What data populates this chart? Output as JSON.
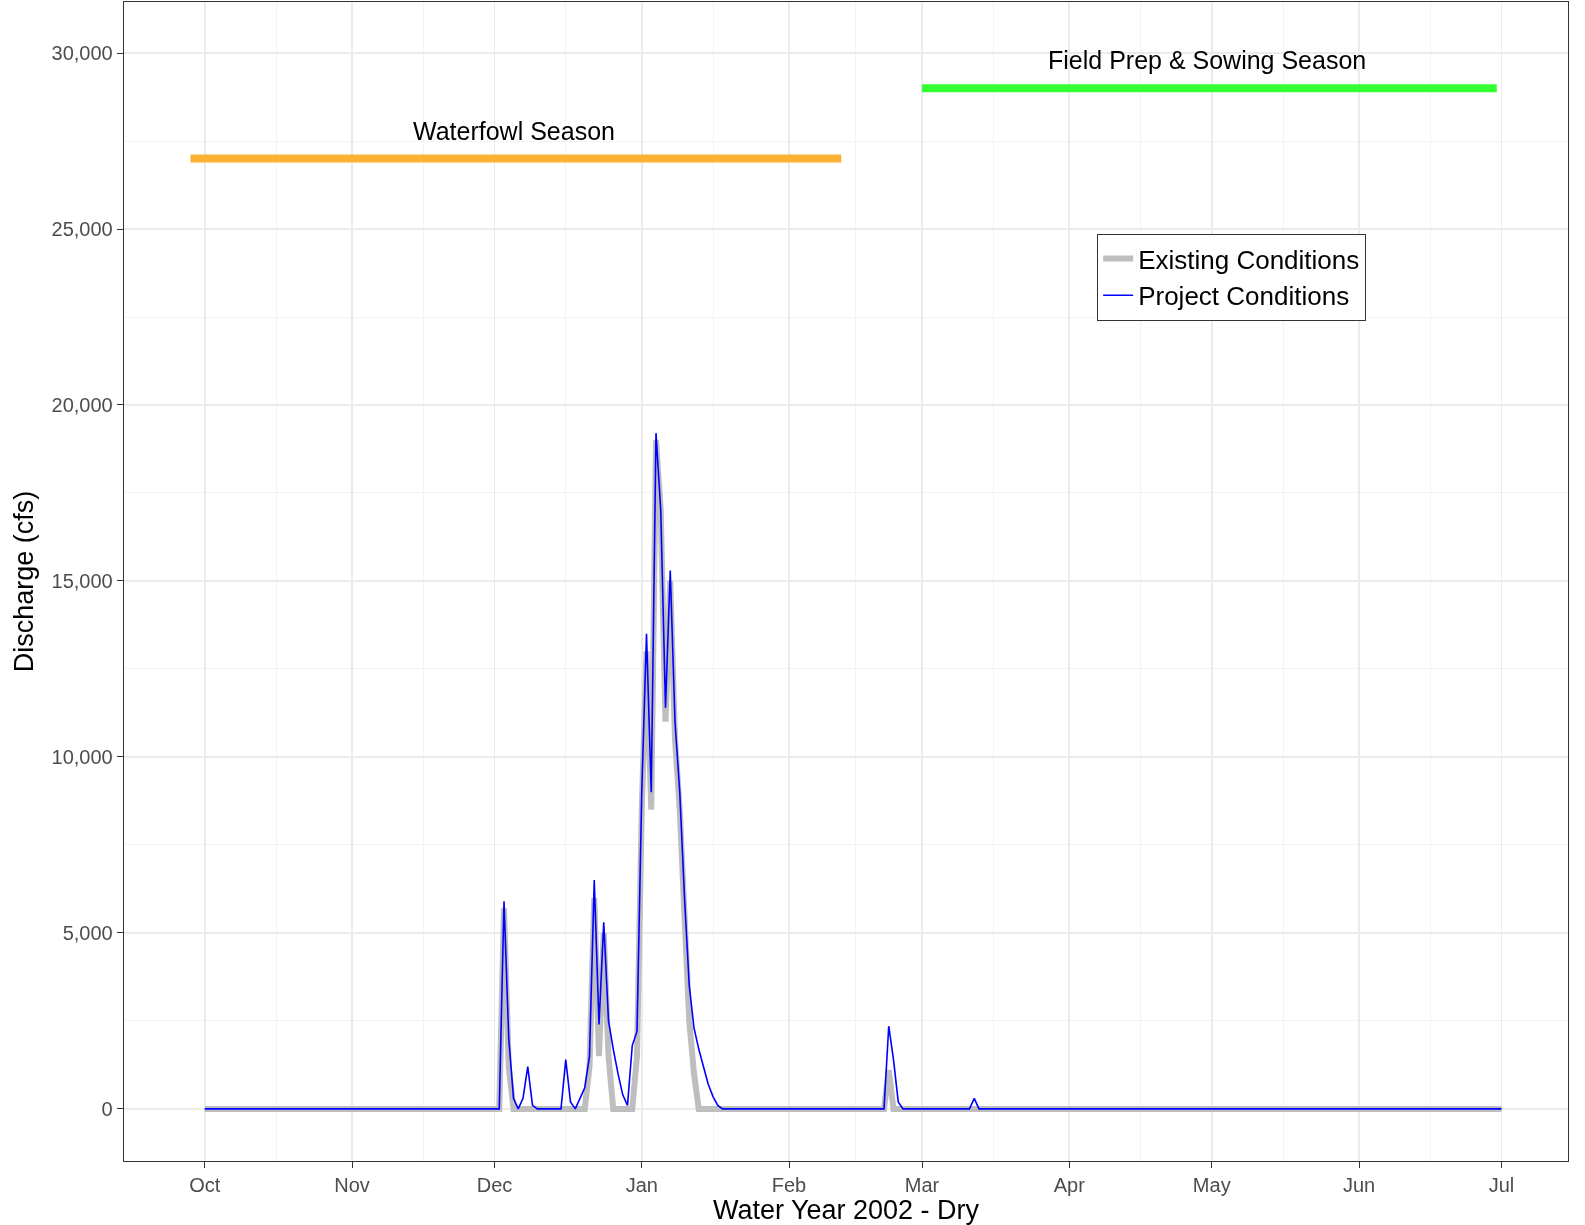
{
  "chart_data": {
    "type": "line",
    "xlabel": "Water Year 2002 - Dry",
    "ylabel": "Discharge (cfs)",
    "x": [
      "2001-10-01",
      "2001-12-01",
      "2001-12-02",
      "2001-12-03",
      "2001-12-04",
      "2001-12-05",
      "2001-12-06",
      "2001-12-07",
      "2001-12-08",
      "2001-12-09",
      "2001-12-10",
      "2001-12-15",
      "2001-12-16",
      "2001-12-17",
      "2001-12-18",
      "2001-12-19",
      "2001-12-20",
      "2001-12-21",
      "2001-12-22",
      "2001-12-23",
      "2001-12-24",
      "2001-12-25",
      "2001-12-26",
      "2001-12-27",
      "2001-12-28",
      "2001-12-29",
      "2001-12-30",
      "2001-12-31",
      "2002-01-01",
      "2002-01-02",
      "2002-01-03",
      "2002-01-04",
      "2002-01-05",
      "2002-01-06",
      "2002-01-07",
      "2002-01-08",
      "2002-01-09",
      "2002-01-10",
      "2002-01-11",
      "2002-01-12",
      "2002-01-13",
      "2002-01-14",
      "2002-01-15",
      "2002-01-16",
      "2002-01-17",
      "2002-01-18",
      "2002-01-19",
      "2002-02-21",
      "2002-02-22",
      "2002-02-23",
      "2002-02-24",
      "2002-02-25",
      "2002-03-11",
      "2002-03-12",
      "2002-03-13",
      "2002-03-14",
      "2002-07-01"
    ],
    "series": [
      {
        "name": "Existing Conditions",
        "color": "#bebebe",
        "values": [
          0,
          0,
          0,
          5700,
          1200,
          0,
          0,
          0,
          0,
          0,
          0,
          0,
          0,
          0,
          0,
          0,
          0,
          1200,
          6000,
          1500,
          5000,
          1500,
          0,
          0,
          0,
          0,
          0,
          1500,
          8500,
          13000,
          8500,
          19000,
          17000,
          11000,
          15000,
          10500,
          8500,
          5500,
          2500,
          1000,
          0,
          0,
          0,
          0,
          0,
          0,
          0,
          0,
          1100,
          0,
          0,
          0,
          0,
          0,
          0,
          0,
          0
        ]
      },
      {
        "name": "Project Conditions",
        "color": "#0000ff",
        "values": [
          0,
          0,
          0,
          5900,
          2000,
          300,
          0,
          300,
          1200,
          100,
          0,
          0,
          1400,
          200,
          0,
          300,
          600,
          1500,
          6500,
          2400,
          5300,
          2500,
          1700,
          1000,
          400,
          100,
          1800,
          2200,
          9000,
          13500,
          9000,
          19200,
          17000,
          11400,
          15300,
          11000,
          9000,
          6000,
          3500,
          2300,
          1700,
          1200,
          700,
          350,
          100,
          0,
          0,
          0,
          2350,
          1400,
          200,
          0,
          0,
          300,
          0,
          0,
          0
        ]
      },
      {
        "name": "Waterfowl Season",
        "color": "#fbb134",
        "x": [
          "2001-09-28",
          "2002-02-12"
        ],
        "values": [
          27000,
          27000
        ]
      },
      {
        "name": "Field Prep & Sowing Season",
        "color": "#33ff33",
        "x": [
          "2002-03-01",
          "2002-06-30"
        ],
        "values": [
          29000,
          29000
        ]
      }
    ],
    "xlim": [
      "2001-09-14",
      "2002-07-15"
    ],
    "xticks": [
      {
        "value": "2001-10-01",
        "label": "Oct"
      },
      {
        "value": "2001-11-01",
        "label": "Nov"
      },
      {
        "value": "2001-12-01",
        "label": "Dec"
      },
      {
        "value": "2002-01-01",
        "label": "Jan"
      },
      {
        "value": "2002-02-01",
        "label": "Feb"
      },
      {
        "value": "2002-03-01",
        "label": "Mar"
      },
      {
        "value": "2002-04-01",
        "label": "Apr"
      },
      {
        "value": "2002-05-01",
        "label": "May"
      },
      {
        "value": "2002-06-01",
        "label": "Jun"
      },
      {
        "value": "2002-07-01",
        "label": "Jul"
      }
    ],
    "ylim": [
      -1480,
      31450
    ],
    "yticks": [
      {
        "value": 0,
        "label": "0"
      },
      {
        "value": 5000,
        "label": "5,000"
      },
      {
        "value": 10000,
        "label": "10,000"
      },
      {
        "value": 15000,
        "label": "15,000"
      },
      {
        "value": 20000,
        "label": "20,000"
      },
      {
        "value": 25000,
        "label": "25,000"
      },
      {
        "value": 30000,
        "label": "30,000"
      }
    ],
    "grid": true,
    "legend": "top right",
    "marker": "none",
    "line_style": "solid"
  }
}
